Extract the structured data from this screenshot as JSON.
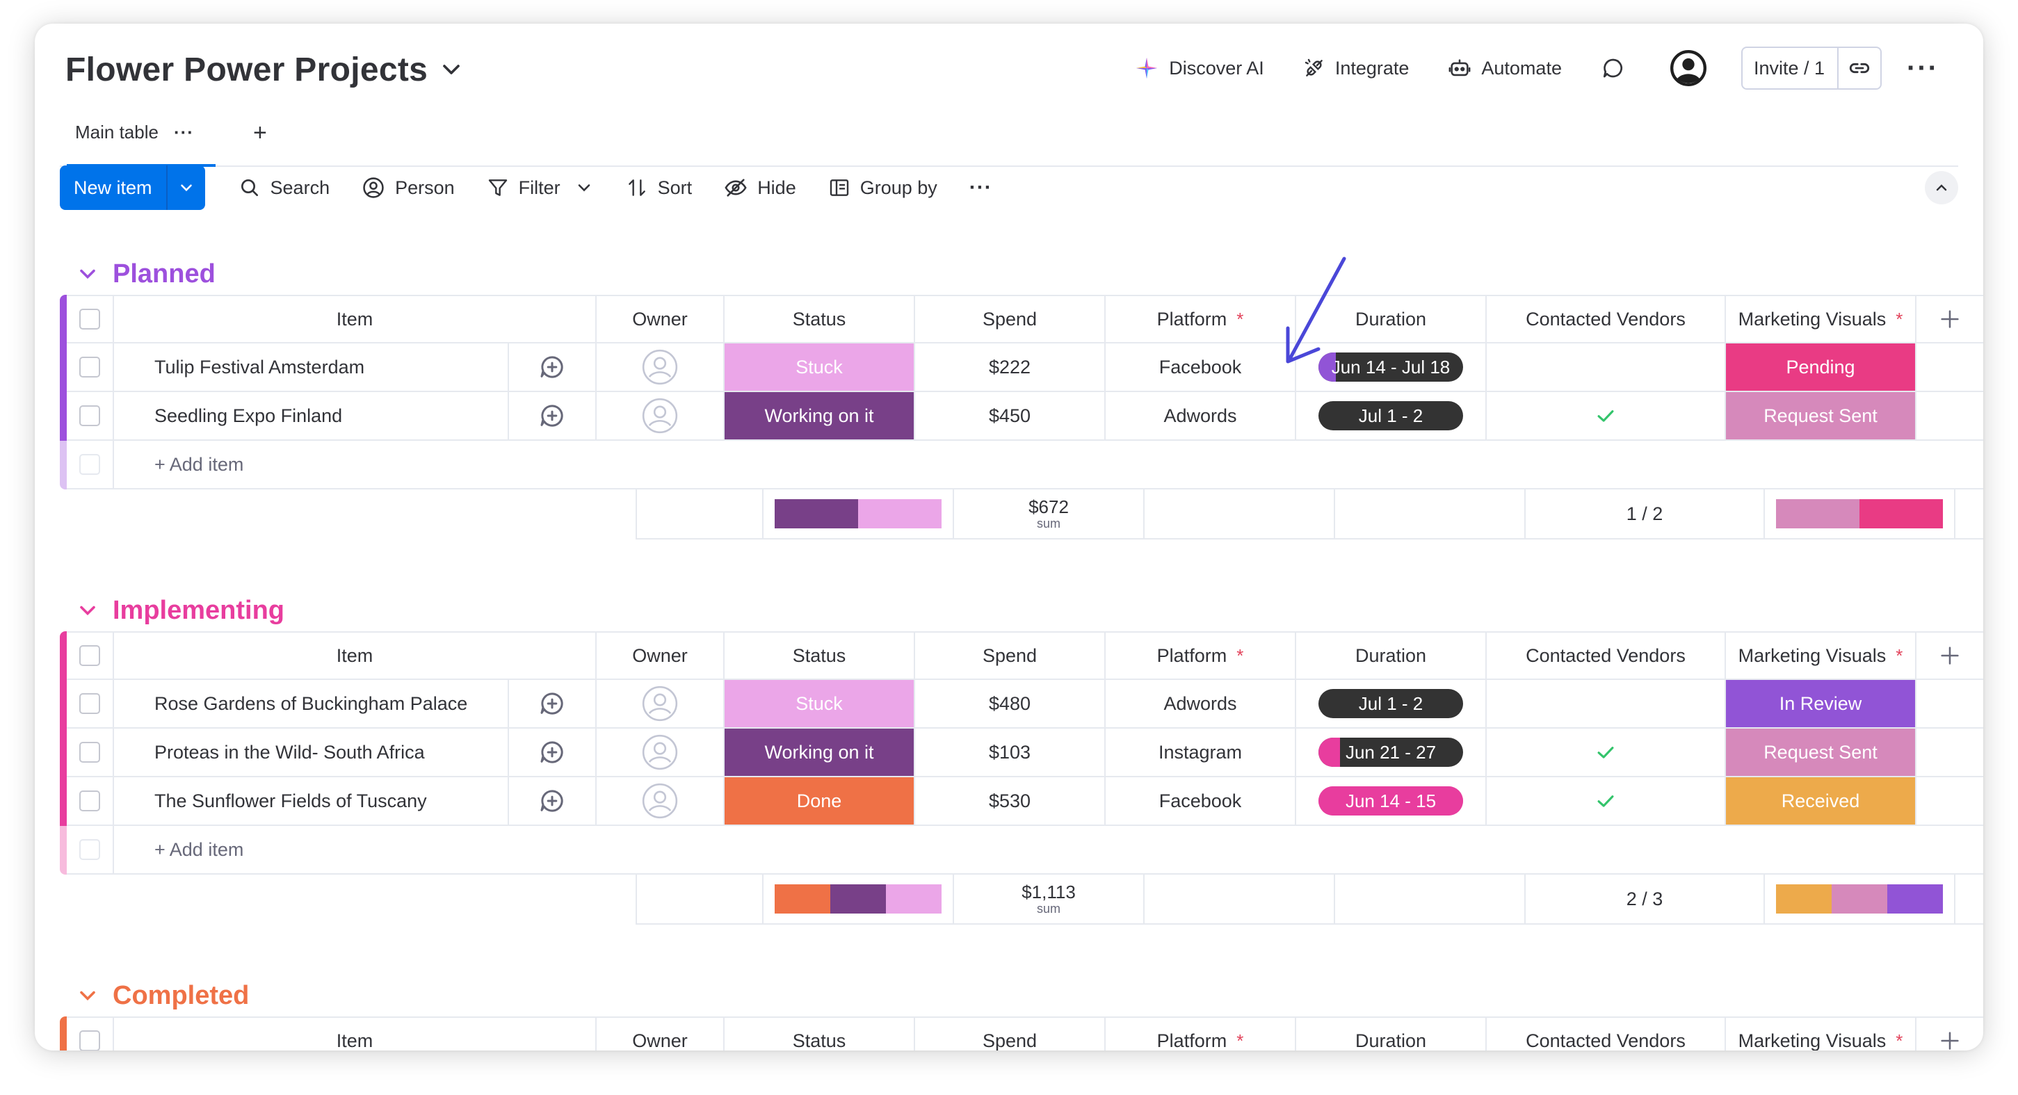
{
  "board": {
    "title": "Flower Power Projects"
  },
  "header": {
    "discover_ai": "Discover AI",
    "integrate": "Integrate",
    "automate": "Automate",
    "invite": "Invite / 1"
  },
  "tabs": [
    {
      "label": "Main table"
    }
  ],
  "toolbar": {
    "new_item": "New item",
    "search": "Search",
    "person": "Person",
    "filter": "Filter",
    "sort": "Sort",
    "hide": "Hide",
    "group_by": "Group by"
  },
  "columns": {
    "item": "Item",
    "owner": "Owner",
    "status": "Status",
    "spend": "Spend",
    "platform": "Platform",
    "duration": "Duration",
    "contacted_vendors": "Contacted Vendors",
    "marketing_visuals": "Marketing Visuals",
    "required_mark": "*"
  },
  "add_item": "+ Add item",
  "sum_label": "sum",
  "colors": {
    "stuck": "#eba6e8",
    "working": "#784088",
    "done": "#ef7146",
    "pending": "#e93b84",
    "request_sent": "#d689bb",
    "in_review": "#9154d6",
    "received": "#edaa4b",
    "dark_pill": "#333333",
    "check": "#33c46b"
  },
  "groups": [
    {
      "title": "Planned",
      "color": "#9d50dd",
      "rows": [
        {
          "name": "Tulip Festival Amsterdam",
          "status": "Stuck",
          "status_color": "#eba6e8",
          "spend": "$222",
          "platform": "Facebook",
          "duration": "Jun 14 - Jul 18",
          "duration_progress": 0.12,
          "duration_fill": "#9154d6",
          "duration_bg": "#333333",
          "vendors_checked": false,
          "visual": "Pending",
          "visual_color": "#e93b84"
        },
        {
          "name": "Seedling Expo Finland",
          "status": "Working on it",
          "status_color": "#784088",
          "spend": "$450",
          "platform": "Adwords",
          "duration": "Jul 1 - 2",
          "duration_progress": 0,
          "duration_fill": "#333333",
          "duration_bg": "#333333",
          "vendors_checked": true,
          "visual": "Request Sent",
          "visual_color": "#d689bb"
        }
      ],
      "summary": {
        "status_bar": [
          {
            "color": "#784088",
            "share": 0.5
          },
          {
            "color": "#eba6e8",
            "share": 0.5
          }
        ],
        "spend_sum": "$672",
        "vendors": "1 / 2",
        "visual_bar": [
          {
            "color": "#d689bb",
            "share": 0.5
          },
          {
            "color": "#e93b84",
            "share": 0.5
          }
        ]
      }
    },
    {
      "title": "Implementing",
      "color": "#e83d9e",
      "rows": [
        {
          "name": "Rose Gardens of Buckingham Palace",
          "status": "Stuck",
          "status_color": "#eba6e8",
          "spend": "$480",
          "platform": "Adwords",
          "duration": "Jul 1 - 2",
          "duration_progress": 0,
          "duration_fill": "#333333",
          "duration_bg": "#333333",
          "vendors_checked": false,
          "visual": "In Review",
          "visual_color": "#9154d6"
        },
        {
          "name": "Proteas in the Wild- South Africa",
          "status": "Working on it",
          "status_color": "#784088",
          "spend": "$103",
          "platform": "Instagram",
          "duration": "Jun 21 - 27",
          "duration_progress": 0.15,
          "duration_fill": "#e83d9e",
          "duration_bg": "#333333",
          "vendors_checked": true,
          "visual": "Request Sent",
          "visual_color": "#d689bb"
        },
        {
          "name": "The Sunflower Fields of Tuscany",
          "status": "Done",
          "status_color": "#ef7146",
          "spend": "$530",
          "platform": "Facebook",
          "duration": "Jun 14 - 15",
          "duration_progress": 1,
          "duration_fill": "#e83d9e",
          "duration_bg": "#e83d9e",
          "vendors_checked": true,
          "visual": "Received",
          "visual_color": "#edaa4b"
        }
      ],
      "summary": {
        "status_bar": [
          {
            "color": "#ef7146",
            "share": 0.3333
          },
          {
            "color": "#784088",
            "share": 0.3333
          },
          {
            "color": "#eba6e8",
            "share": 0.3334
          }
        ],
        "spend_sum": "$1,113",
        "vendors": "2 / 3",
        "visual_bar": [
          {
            "color": "#edaa4b",
            "share": 0.3333
          },
          {
            "color": "#d689bb",
            "share": 0.3333
          },
          {
            "color": "#9154d6",
            "share": 0.3334
          }
        ]
      }
    },
    {
      "title": "Completed",
      "color": "#ef7146",
      "rows": []
    }
  ]
}
